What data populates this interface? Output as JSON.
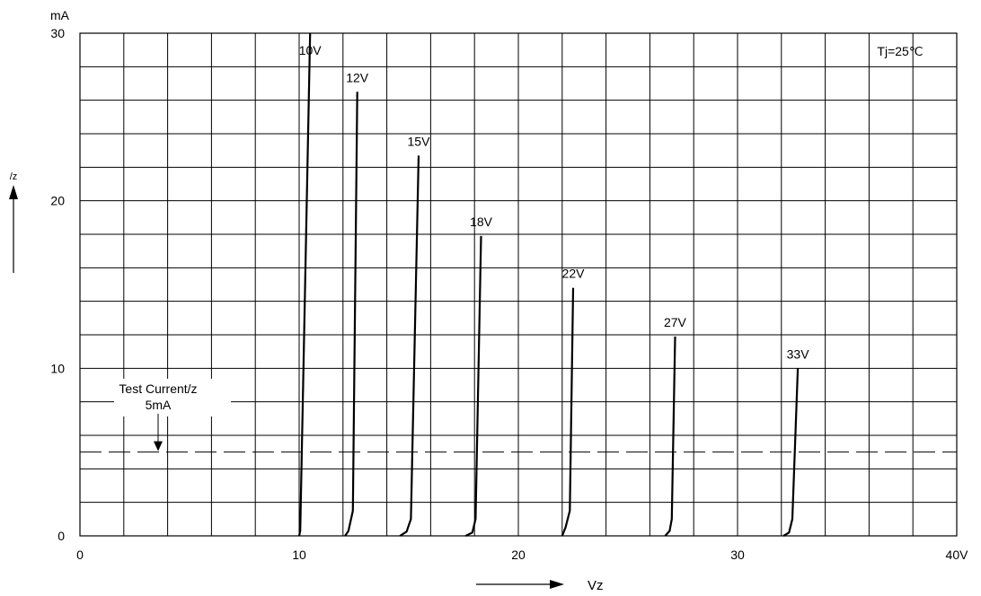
{
  "chart_data": {
    "type": "line",
    "title": "",
    "xlabel": "Vz",
    "ylabel": "/z",
    "y_unit": "mA",
    "x_unit_on_last_tick": "40V",
    "xlim": [
      0,
      40
    ],
    "ylim": [
      0,
      30
    ],
    "x_ticks": [
      "0",
      "10",
      "20",
      "30",
      "40V"
    ],
    "y_ticks": [
      "0",
      "10",
      "20",
      "30"
    ],
    "grid": true,
    "grid_x_step": 2,
    "grid_y_step": 2,
    "condition_label": "Tj=25℃",
    "test_current": {
      "label_line1": "Test Current/z",
      "label_line2": "5mA",
      "value": 5
    },
    "series": [
      {
        "name": "10V",
        "points": [
          [
            10.0,
            0.0
          ],
          [
            10.05,
            0.3
          ],
          [
            10.5,
            30.0
          ]
        ]
      },
      {
        "name": "12V",
        "points": [
          [
            12.1,
            0.0
          ],
          [
            12.25,
            0.3
          ],
          [
            12.45,
            1.5
          ],
          [
            12.65,
            26.5
          ]
        ]
      },
      {
        "name": "15V",
        "points": [
          [
            14.6,
            0.0
          ],
          [
            14.9,
            0.25
          ],
          [
            15.1,
            1.0
          ],
          [
            15.45,
            22.7
          ]
        ]
      },
      {
        "name": "18V",
        "points": [
          [
            17.6,
            0.0
          ],
          [
            17.9,
            0.2
          ],
          [
            18.05,
            1.0
          ],
          [
            18.3,
            17.9
          ]
        ]
      },
      {
        "name": "22V",
        "points": [
          [
            22.0,
            0.0
          ],
          [
            22.15,
            0.5
          ],
          [
            22.35,
            1.5
          ],
          [
            22.5,
            14.8
          ]
        ]
      },
      {
        "name": "27V",
        "points": [
          [
            26.7,
            0.0
          ],
          [
            26.9,
            0.3
          ],
          [
            27.0,
            1.0
          ],
          [
            27.15,
            11.9
          ]
        ]
      },
      {
        "name": "33V",
        "points": [
          [
            32.1,
            0.0
          ],
          [
            32.35,
            0.2
          ],
          [
            32.5,
            1.0
          ],
          [
            32.75,
            10.0
          ]
        ]
      }
    ]
  }
}
